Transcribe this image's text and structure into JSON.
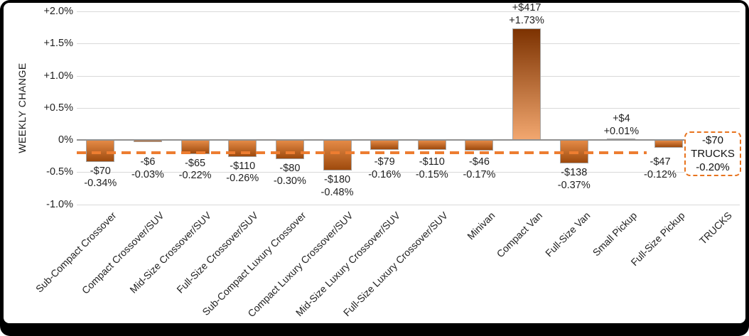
{
  "chart_data": {
    "type": "bar",
    "title": "",
    "xlabel": "",
    "ylabel": "WEEKLY CHANGE",
    "ylim": [
      -1.0,
      2.0
    ],
    "grid": true,
    "legend": false,
    "ytick_values": [
      2.0,
      1.5,
      1.0,
      0.5,
      0,
      -0.5,
      -1.0
    ],
    "ytick_labels": [
      "+2.0%",
      "+1.5%",
      "+1.0%",
      "+0.5%",
      "0%",
      "-0.5%",
      "-1.0%"
    ],
    "categories": [
      "Sub-Compact Crossover",
      "Compact Crossover/SUV",
      "Mid-Size Crossover/SUV",
      "Full-Size Crossover/SUV",
      "Sub-Compact Luxury Crossover",
      "Compact Luxury Crossover/SUV",
      "Mid-Size Luxury Crossover/SUV",
      "Full-Size Luxury Crossover/SUV",
      "Minivan",
      "Compact Van",
      "Full-Size Van",
      "Small Pickup",
      "Full-Size Pickup",
      "TRUCKS"
    ],
    "series": [
      {
        "name": "Weekly change (%)",
        "values": [
          -0.34,
          -0.03,
          -0.22,
          -0.26,
          -0.3,
          -0.48,
          -0.16,
          -0.15,
          -0.17,
          1.73,
          -0.37,
          0.01,
          -0.12,
          null
        ]
      },
      {
        "name": "Weekly change ($)",
        "values": [
          -70,
          -6,
          -65,
          -110,
          -80,
          -180,
          -79,
          -110,
          -46,
          417,
          -138,
          4,
          -47,
          null
        ]
      }
    ],
    "data_labels": [
      [
        "-$70",
        "-0.34%"
      ],
      [
        "-$6",
        "-0.03%"
      ],
      [
        "-$65",
        "-0.22%"
      ],
      [
        "-$110",
        "-0.26%"
      ],
      [
        "-$80",
        "-0.30%"
      ],
      [
        "-$180",
        "-0.48%"
      ],
      [
        "-$79",
        "-0.16%"
      ],
      [
        "-$110",
        "-0.15%"
      ],
      [
        "-$46",
        "-0.17%"
      ],
      [
        "+$417",
        "+1.73%"
      ],
      [
        "-$138",
        "-0.37%"
      ],
      [
        "+$4",
        "+0.01%"
      ],
      [
        "-$47",
        "-0.12%"
      ],
      null
    ],
    "reference_line": {
      "value": -0.2,
      "style": "dashed",
      "meaning": "TRUCKS overall weekly change"
    },
    "annotation_box": {
      "category": "TRUCKS",
      "lines": [
        "-$70",
        "TRUCKS",
        "-0.20%"
      ]
    },
    "colors": {
      "bar_positive_top": "#7C3201",
      "bar_positive_bottom": "#F2A76F",
      "bar_negative_top": "#E48A46",
      "bar_negative_bottom": "#9E4A0D",
      "bar_border": "#A6A6A6",
      "gridline": "#D9D9D9",
      "zero_line": "#909090",
      "reference_line": "#ED7D31",
      "annotation_border": "#E8731E",
      "text": "#1F1F1F"
    }
  }
}
